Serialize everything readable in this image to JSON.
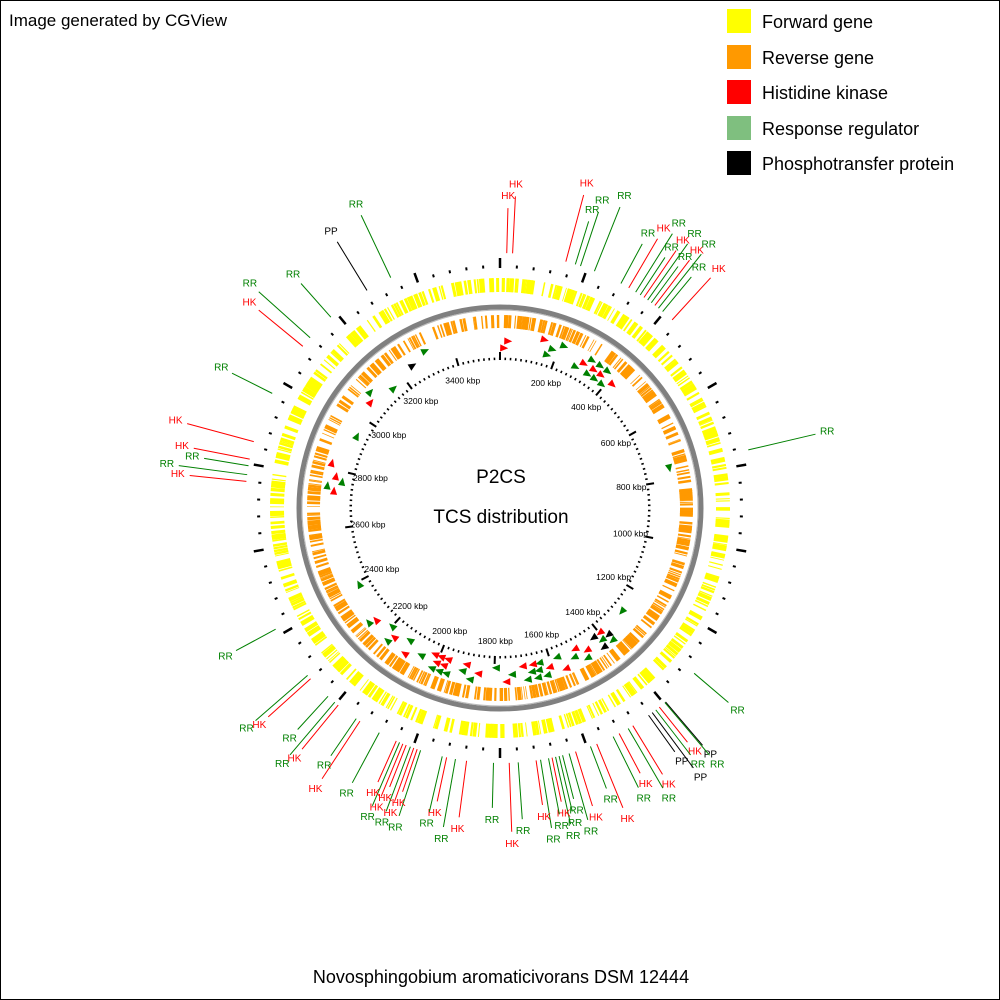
{
  "credit": "Image generated by CGView",
  "legend": [
    {
      "label": "Forward gene",
      "color": "#ffff00"
    },
    {
      "label": "Reverse gene",
      "color": "#ff9900"
    },
    {
      "label": "Histidine kinase",
      "color": "#ff0000"
    },
    {
      "label": "Response regulator",
      "color": "#7fbf7f"
    },
    {
      "label": "Phosphotransfer protein",
      "color": "#000000"
    }
  ],
  "center": {
    "title": "P2CS",
    "subtitle": "TCS distribution"
  },
  "organism": "Novosphingobium aromaticivorans DSM 12444",
  "colors": {
    "forward": "#ffff00",
    "reverse": "#ff9900",
    "hk": "#ff0000",
    "rr": "#008000",
    "rr_marker": "#008000",
    "pp": "#000000",
    "backbone": "#808080"
  },
  "ruler": {
    "ticks": [
      "200 kbp",
      "400 kbp",
      "600 kbp",
      "800 kbp",
      "1000 kbp",
      "1200 kbp",
      "1400 kbp",
      "1600 kbp",
      "1800 kbp",
      "2000 kbp",
      "2200 kbp",
      "2400 kbp",
      "2600 kbp",
      "2800 kbp",
      "3000 kbp",
      "3200 kbp",
      "3400 kbp"
    ]
  },
  "chart_data": {
    "type": "circular genome map",
    "genome_size_kbp": 3561,
    "ruler_ticks_kbp": [
      200,
      400,
      600,
      800,
      1000,
      1200,
      1400,
      1600,
      1800,
      2000,
      2200,
      2400,
      2600,
      2800,
      3000,
      3200,
      3400
    ],
    "features": [
      {
        "kbp": 15,
        "type": "HK"
      },
      {
        "kbp": 28,
        "type": "HK"
      },
      {
        "kbp": 148,
        "type": "HK"
      },
      {
        "kbp": 170,
        "type": "RR"
      },
      {
        "kbp": 182,
        "type": "RR"
      },
      {
        "kbp": 215,
        "type": "RR"
      },
      {
        "kbp": 280,
        "type": "RR"
      },
      {
        "kbp": 300,
        "type": "HK"
      },
      {
        "kbp": 318,
        "type": "RR"
      },
      {
        "kbp": 330,
        "type": "RR"
      },
      {
        "kbp": 340,
        "type": "HK"
      },
      {
        "kbp": 350,
        "type": "RR"
      },
      {
        "kbp": 360,
        "type": "RR"
      },
      {
        "kbp": 370,
        "type": "HK"
      },
      {
        "kbp": 380,
        "type": "RR"
      },
      {
        "kbp": 392,
        "type": "RR"
      },
      {
        "kbp": 420,
        "type": "HK"
      },
      {
        "kbp": 760,
        "type": "RR"
      },
      {
        "kbp": 1290,
        "type": "RR"
      },
      {
        "kbp": 1380,
        "type": "PP"
      },
      {
        "kbp": 1382,
        "type": "RR"
      },
      {
        "kbp": 1398,
        "type": "HK"
      },
      {
        "kbp": 1408,
        "type": "RR"
      },
      {
        "kbp": 1418,
        "type": "PP"
      },
      {
        "kbp": 1428,
        "type": "PP"
      },
      {
        "kbp": 1470,
        "type": "HK"
      },
      {
        "kbp": 1482,
        "type": "RR"
      },
      {
        "kbp": 1505,
        "type": "HK"
      },
      {
        "kbp": 1520,
        "type": "RR"
      },
      {
        "kbp": 1560,
        "type": "HK"
      },
      {
        "kbp": 1575,
        "type": "RR"
      },
      {
        "kbp": 1610,
        "type": "HK"
      },
      {
        "kbp": 1625,
        "type": "RR"
      },
      {
        "kbp": 1640,
        "type": "RR"
      },
      {
        "kbp": 1648,
        "type": "RR"
      },
      {
        "kbp": 1656,
        "type": "RR"
      },
      {
        "kbp": 1664,
        "type": "HK"
      },
      {
        "kbp": 1672,
        "type": "RR"
      },
      {
        "kbp": 1690,
        "type": "RR"
      },
      {
        "kbp": 1700,
        "type": "HK"
      },
      {
        "kbp": 1740,
        "type": "RR"
      },
      {
        "kbp": 1760,
        "type": "HK"
      },
      {
        "kbp": 1795,
        "type": "RR"
      },
      {
        "kbp": 1855,
        "type": "HK"
      },
      {
        "kbp": 1880,
        "type": "RR"
      },
      {
        "kbp": 1900,
        "type": "HK"
      },
      {
        "kbp": 1910,
        "type": "RR"
      },
      {
        "kbp": 1960,
        "type": "RR"
      },
      {
        "kbp": 1968,
        "type": "HK"
      },
      {
        "kbp": 1976,
        "type": "HK"
      },
      {
        "kbp": 1984,
        "type": "RR"
      },
      {
        "kbp": 1994,
        "type": "HK"
      },
      {
        "kbp": 2002,
        "type": "HK"
      },
      {
        "kbp": 2010,
        "type": "RR"
      },
      {
        "kbp": 2018,
        "type": "HK"
      },
      {
        "kbp": 2060,
        "type": "RR"
      },
      {
        "kbp": 2110,
        "type": "HK"
      },
      {
        "kbp": 2120,
        "type": "RR"
      },
      {
        "kbp": 2170,
        "type": "HK"
      },
      {
        "kbp": 2180,
        "type": "RR"
      },
      {
        "kbp": 2200,
        "type": "RR"
      },
      {
        "kbp": 2255,
        "type": "HK"
      },
      {
        "kbp": 2265,
        "type": "RR"
      },
      {
        "kbp": 2390,
        "type": "RR"
      },
      {
        "kbp": 2730,
        "type": "HK"
      },
      {
        "kbp": 2745,
        "type": "RR"
      },
      {
        "kbp": 2765,
        "type": "RR"
      },
      {
        "kbp": 2780,
        "type": "HK"
      },
      {
        "kbp": 2820,
        "type": "HK"
      },
      {
        "kbp": 2935,
        "type": "RR"
      },
      {
        "kbp": 3060,
        "type": "HK"
      },
      {
        "kbp": 3085,
        "type": "RR"
      },
      {
        "kbp": 3150,
        "type": "RR"
      },
      {
        "kbp": 3250,
        "type": "PP"
      },
      {
        "kbp": 3310,
        "type": "RR"
      }
    ]
  }
}
